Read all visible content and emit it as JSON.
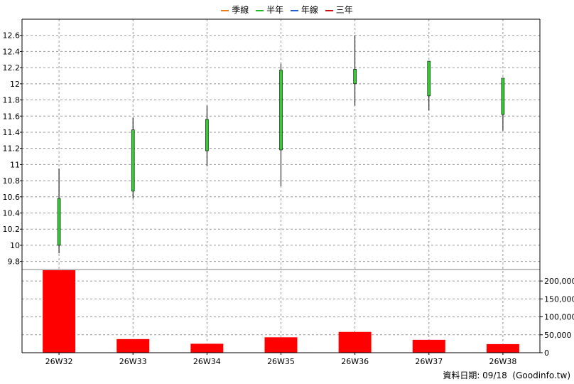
{
  "legend": [
    {
      "label": "季線",
      "color": "#e67e22"
    },
    {
      "label": "半年",
      "color": "#22bb22"
    },
    {
      "label": "年線",
      "color": "#1f5fd0"
    },
    {
      "label": "三年",
      "color": "#cc1111"
    }
  ],
  "footer": {
    "date_label": "資料日期: 09/18",
    "source": "(Goodinfo.tw)"
  },
  "chart_data": [
    {
      "type": "candlestick",
      "categories": [
        "26W32",
        "26W33",
        "26W34",
        "26W35",
        "26W36",
        "26W37",
        "26W38"
      ],
      "series": [
        {
          "open": 10.0,
          "high": 10.95,
          "low": 9.9,
          "close": 10.58
        },
        {
          "open": 10.67,
          "high": 11.58,
          "low": 10.58,
          "close": 11.43
        },
        {
          "open": 11.17,
          "high": 11.73,
          "low": 10.98,
          "close": 11.56
        },
        {
          "open": 11.18,
          "high": 12.25,
          "low": 10.73,
          "close": 12.17
        },
        {
          "open": 12.0,
          "high": 12.6,
          "low": 11.73,
          "close": 12.18
        },
        {
          "open": 11.85,
          "high": 12.28,
          "low": 11.67,
          "close": 12.28
        },
        {
          "open": 11.62,
          "high": 12.07,
          "low": 11.42,
          "close": 12.07
        }
      ],
      "up_color": "#33cc33",
      "down_color": "#cc0000",
      "ylim": [
        9.7,
        12.8
      ],
      "yticks": [
        "9.8",
        "10",
        "10.2",
        "10.4",
        "10.6",
        "10.8",
        "11",
        "11.2",
        "11.4",
        "11.6",
        "11.8",
        "12",
        "12.2",
        "12.4",
        "12.6"
      ],
      "grid": true
    },
    {
      "type": "bar",
      "categories": [
        "26W32",
        "26W33",
        "26W34",
        "26W35",
        "26W36",
        "26W37",
        "26W38"
      ],
      "values": [
        230000,
        38000,
        25000,
        43000,
        58000,
        36000,
        24000
      ],
      "color": "#ff0000",
      "ylim": [
        0,
        230000
      ],
      "yticks": [
        "0",
        "50,000",
        "100,000",
        "150,000",
        "200,000"
      ],
      "grid": true
    }
  ]
}
